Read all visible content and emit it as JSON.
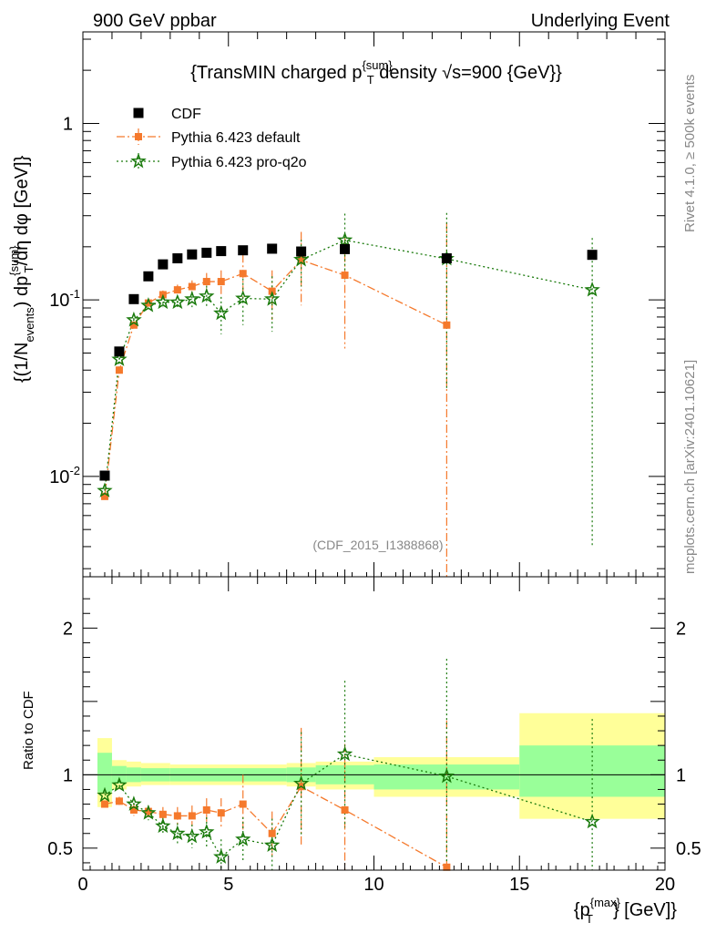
{
  "header": {
    "left": "900 GeV ppbar",
    "right": "Underlying Event"
  },
  "side": {
    "rivet": "Rivet 4.1.0, ≥ 500k events",
    "mcplots": "mcplots.cern.ch [arXiv:2401.10621]"
  },
  "chart_data": {
    "type": "scatter",
    "title": "{TransMIN charged p^{sum}_T density √s=900 {GeV}}",
    "title_parts": {
      "pre": "{TransMIN charged p",
      "sup": "{sum}",
      "sub": "T",
      "post": " density √s=900 {GeV}}"
    },
    "ylabel_parts": [
      "{(1/N",
      "events",
      ") dp",
      "{sum}",
      "T",
      "/dη  dφ [GeV]}"
    ],
    "xlabel_parts": [
      "{p",
      "{max}",
      "T",
      "} [GeV]}"
    ],
    "ratio_ylabel": "Ratio to CDF",
    "analysis_tag": "(CDF_2015_I1388868)",
    "xlim": [
      0,
      20
    ],
    "ylim_main": [
      0.0027,
      3.3
    ],
    "ylim_ratio": [
      0.35,
      2.35
    ],
    "xticks": [
      "0",
      "5",
      "10",
      "15",
      "20"
    ],
    "yticks_main": [
      "10^{-2}",
      "10^{-1}",
      "1"
    ],
    "yticks_ratio": [
      "0.5",
      "1",
      "2"
    ],
    "legend": [
      "CDF",
      "Pythia 6.423 default",
      "Pythia 6.423 pro-q2o"
    ],
    "colors": {
      "data": "#000000",
      "default": "#f5792c",
      "proq2o": "#1a7a0c",
      "band_yellow": "#ffff99",
      "band_green": "#99ff99"
    },
    "series": [
      {
        "name": "CDF",
        "x": [
          0.75,
          1.25,
          1.75,
          2.25,
          2.75,
          3.25,
          3.75,
          4.25,
          4.75,
          5.5,
          6.5,
          7.5,
          9.0,
          12.5,
          17.5
        ],
        "values": [
          0.0101,
          0.051,
          0.101,
          0.136,
          0.159,
          0.172,
          0.181,
          0.185,
          0.189,
          0.191,
          0.195,
          0.188,
          0.194,
          0.172,
          0.18
        ]
      },
      {
        "name": "Pythia 6.423 default",
        "x": [
          0.75,
          1.25,
          1.75,
          2.25,
          2.75,
          3.25,
          3.75,
          4.25,
          4.75,
          5.5,
          6.5,
          7.5,
          9.0,
          12.5
        ],
        "values": [
          0.0077,
          0.04,
          0.072,
          0.096,
          0.107,
          0.114,
          0.119,
          0.127,
          0.127,
          0.141,
          0.112,
          0.168,
          0.138,
          0.072
        ],
        "err": [
          0.0003,
          0.001,
          0.002,
          0.003,
          0.006,
          0.008,
          0.01,
          0.015,
          0.02,
          0.04,
          0.035,
          0.075,
          0.085,
          0.2
        ],
        "ratio": [
          0.8,
          0.82,
          0.76,
          0.75,
          0.73,
          0.72,
          0.72,
          0.76,
          0.74,
          0.8,
          0.6,
          0.92,
          0.76,
          0.37
        ],
        "ratio_err": [
          0.02,
          0.03,
          0.04,
          0.04,
          0.05,
          0.06,
          0.07,
          0.08,
          0.1,
          0.2,
          0.15,
          0.4,
          0.45,
          1.0
        ]
      },
      {
        "name": "Pythia 6.423 pro-q2o",
        "x": [
          0.75,
          1.25,
          1.75,
          2.25,
          2.75,
          3.25,
          3.75,
          4.25,
          4.75,
          5.5,
          6.5,
          7.5,
          9.0,
          12.5,
          17.5
        ],
        "values": [
          0.0083,
          0.046,
          0.077,
          0.093,
          0.097,
          0.097,
          0.101,
          0.105,
          0.084,
          0.102,
          0.101,
          0.169,
          0.218,
          0.171,
          0.114
        ],
        "err": [
          0.0003,
          0.001,
          0.002,
          0.003,
          0.006,
          0.008,
          0.01,
          0.015,
          0.02,
          0.03,
          0.035,
          0.05,
          0.09,
          0.14,
          0.11
        ],
        "ratio": [
          0.86,
          0.93,
          0.8,
          0.74,
          0.65,
          0.6,
          0.58,
          0.61,
          0.44,
          0.56,
          0.52,
          0.94,
          1.14,
          0.99,
          0.68
        ],
        "ratio_err": [
          0.02,
          0.03,
          0.04,
          0.05,
          0.06,
          0.07,
          0.08,
          0.1,
          0.12,
          0.15,
          0.18,
          0.35,
          0.5,
          0.8,
          0.7
        ]
      }
    ],
    "ratio_bands": [
      {
        "x0": 0.5,
        "x1": 1.0,
        "y_lo": 0.78,
        "y_hi": 1.25,
        "g_lo": 0.88,
        "g_hi": 1.15
      },
      {
        "x0": 1.0,
        "x1": 1.5,
        "y_lo": 0.9,
        "y_hi": 1.1,
        "g_lo": 0.94,
        "g_hi": 1.06
      },
      {
        "x0": 1.5,
        "x1": 2.0,
        "y_lo": 0.92,
        "y_hi": 1.09,
        "g_lo": 0.95,
        "g_hi": 1.05
      },
      {
        "x0": 2.0,
        "x1": 3.0,
        "y_lo": 0.93,
        "y_hi": 1.08,
        "g_lo": 0.955,
        "g_hi": 1.045
      },
      {
        "x0": 3.0,
        "x1": 7.0,
        "y_lo": 0.93,
        "y_hi": 1.07,
        "g_lo": 0.955,
        "g_hi": 1.045
      },
      {
        "x0": 7.0,
        "x1": 8.0,
        "y_lo": 0.92,
        "y_hi": 1.08,
        "g_lo": 0.95,
        "g_hi": 1.05
      },
      {
        "x0": 8.0,
        "x1": 10.0,
        "y_lo": 0.9,
        "y_hi": 1.09,
        "g_lo": 0.935,
        "g_hi": 1.065
      },
      {
        "x0": 10.0,
        "x1": 15.0,
        "y_lo": 0.85,
        "y_hi": 1.12,
        "g_lo": 0.9,
        "g_hi": 1.07
      },
      {
        "x0": 15.0,
        "x1": 20.0,
        "y_lo": 0.7,
        "y_hi": 1.42,
        "g_lo": 0.85,
        "g_hi": 1.2
      }
    ]
  }
}
